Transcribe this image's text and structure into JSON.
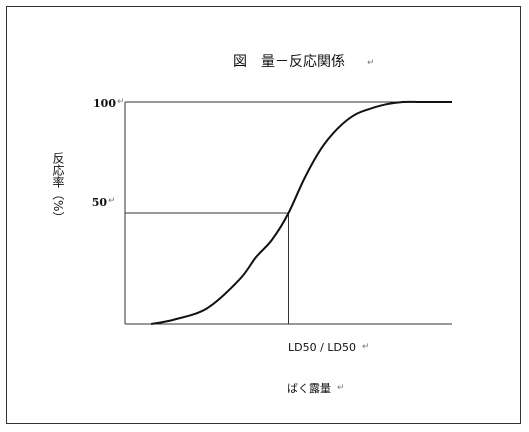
{
  "chart_data": {
    "type": "line",
    "title": "図　量－反応関係",
    "ylabel": "反応率（%）",
    "xlabel": "LD50 / LD50",
    "x_caption": "ばく露量",
    "ylim": [
      0,
      100
    ],
    "y_ticks": [
      {
        "value": 100,
        "label": "100"
      },
      {
        "value": 50,
        "label": "50"
      }
    ],
    "x_marker": {
      "label": "LD50 / LD50",
      "value": 0.5
    },
    "grid": false,
    "legend": "none",
    "series": [
      {
        "curve": "sigmoid",
        "x": [
          0.08,
          0.15,
          0.25,
          0.35,
          0.4,
          0.45,
          0.5,
          0.55,
          0.6,
          0.65,
          0.7,
          0.75,
          0.8,
          0.85,
          0.9,
          0.95,
          1.0
        ],
        "y": [
          0,
          2,
          7,
          20,
          30,
          38,
          50,
          66,
          79,
          88,
          94,
          97,
          99,
          100,
          100,
          100,
          100
        ]
      }
    ],
    "reference_lines": [
      {
        "type": "horizontal",
        "y": 50,
        "x_to": 0.5
      },
      {
        "type": "vertical",
        "x": 0.5,
        "y_to": 50
      }
    ],
    "line_color": "#111111"
  }
}
